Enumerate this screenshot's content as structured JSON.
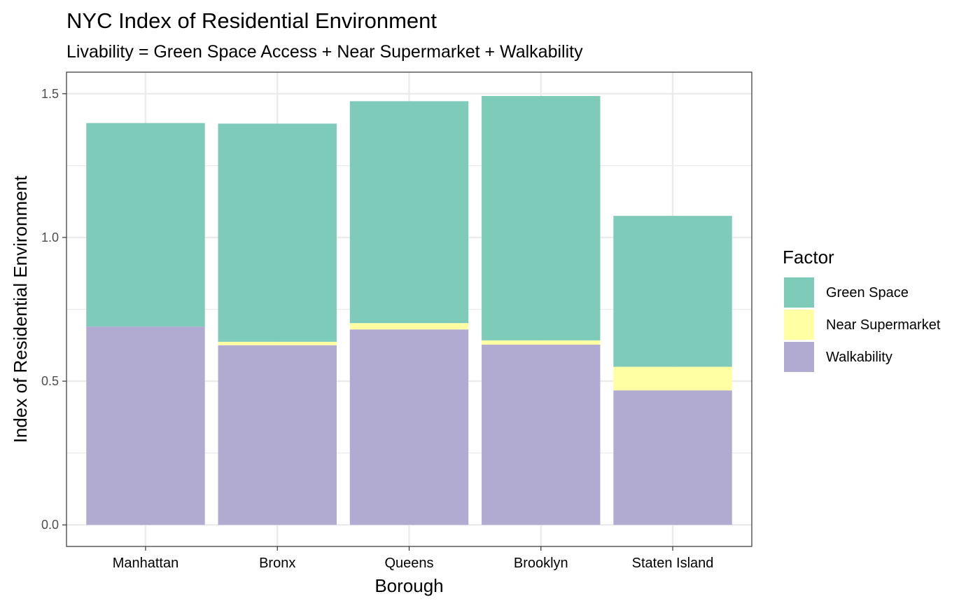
{
  "chart_data": {
    "type": "bar",
    "stacked": true,
    "title": "NYC Index of Residential Environment",
    "subtitle": "Livability = Green Space Access + Near Supermarket + Walkability",
    "xlabel": "Borough",
    "ylabel": "Index of Residential Environment",
    "categories": [
      "Manhattan",
      "Bronx",
      "Queens",
      "Brooklyn",
      "Staten Island"
    ],
    "highlight_category": "Manhattan",
    "highlight_color": "#ff0000",
    "series": [
      {
        "name": "Walkability",
        "color": "#b1abd1",
        "values": [
          0.69,
          0.625,
          0.68,
          0.627,
          0.468
        ]
      },
      {
        "name": "Near Supermarket",
        "color": "#ffffa3",
        "values": [
          0.0,
          0.012,
          0.022,
          0.015,
          0.082
        ]
      },
      {
        "name": "Green Space",
        "color": "#7fcbba",
        "values": [
          0.708,
          0.759,
          0.772,
          0.85,
          0.525
        ]
      }
    ],
    "ylim": [
      -0.075,
      1.575
    ],
    "yticks": [
      0.0,
      0.5,
      1.0,
      1.5
    ],
    "ytick_labels": [
      "0.0",
      "0.5",
      "1.0",
      "1.5"
    ],
    "grid": true,
    "legend": {
      "title": "Factor",
      "position": "right",
      "entries": [
        "Green Space",
        "Near Supermarket",
        "Walkability"
      ]
    }
  }
}
